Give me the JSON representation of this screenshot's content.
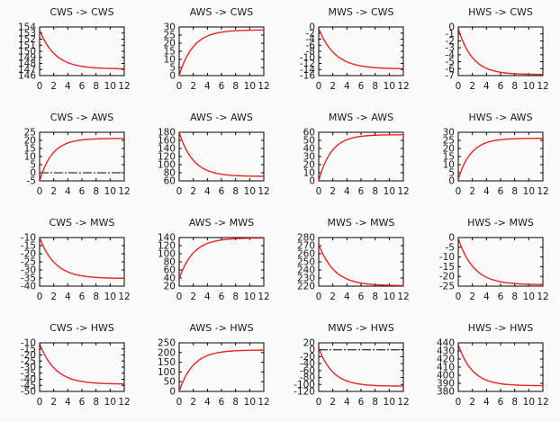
{
  "figure": {
    "background": "#fbfbfb",
    "curve_color": "#e62424",
    "axis_color": "#000000",
    "text_color": "#1a1a1a",
    "columns": 4,
    "rows": 4
  },
  "chart_data": [
    {
      "type": "line",
      "title": "CWS -> CWS",
      "xlabel": "",
      "ylabel": "",
      "xlim": [
        0,
        12
      ],
      "ylim": [
        146,
        154
      ],
      "xticks": [
        0,
        2,
        4,
        6,
        8,
        10,
        12
      ],
      "yticks": [
        146,
        147,
        148,
        149,
        150,
        151,
        152,
        153,
        154
      ],
      "grid": false,
      "legend": "none",
      "zeroaxis": false,
      "series": [
        {
          "name": "response",
          "shape": "exponential-decay",
          "start": 153.5,
          "end": 147.1,
          "tau": 2.2
        }
      ]
    },
    {
      "type": "line",
      "title": "AWS -> CWS",
      "xlabel": "",
      "ylabel": "",
      "xlim": [
        0,
        12
      ],
      "ylim": [
        0,
        30
      ],
      "xticks": [
        0,
        2,
        4,
        6,
        8,
        10,
        12
      ],
      "yticks": [
        0,
        5,
        10,
        15,
        20,
        25,
        30
      ],
      "grid": false,
      "legend": "none",
      "zeroaxis": false,
      "series": [
        {
          "name": "response",
          "shape": "exponential-rise",
          "start": 0,
          "end": 28.2,
          "tau": 2.0
        }
      ]
    },
    {
      "type": "line",
      "title": "MWS -> CWS",
      "xlabel": "",
      "ylabel": "",
      "xlim": [
        0,
        12
      ],
      "ylim": [
        -16,
        0
      ],
      "xticks": [
        0,
        2,
        4,
        6,
        8,
        10,
        12
      ],
      "yticks": [
        -16,
        -14,
        -12,
        -10,
        -8,
        -6,
        -4,
        -2,
        0
      ],
      "grid": false,
      "legend": "none",
      "zeroaxis": false,
      "series": [
        {
          "name": "response",
          "shape": "exponential-decay",
          "start": -0.5,
          "end": -13.8,
          "tau": 2.3
        }
      ]
    },
    {
      "type": "line",
      "title": "HWS -> CWS",
      "xlabel": "",
      "ylabel": "",
      "xlim": [
        0,
        12
      ],
      "ylim": [
        -7,
        0
      ],
      "xticks": [
        0,
        2,
        4,
        6,
        8,
        10,
        12
      ],
      "yticks": [
        -7,
        -6,
        -5,
        -4,
        -3,
        -2,
        -1,
        0
      ],
      "grid": false,
      "legend": "none",
      "zeroaxis": false,
      "series": [
        {
          "name": "response",
          "shape": "exponential-decay",
          "start": -0.2,
          "end": -6.85,
          "tau": 2.0
        }
      ]
    },
    {
      "type": "line",
      "title": "CWS -> AWS",
      "xlabel": "",
      "ylabel": "",
      "xlim": [
        0,
        12
      ],
      "ylim": [
        -5,
        25
      ],
      "xticks": [
        0,
        2,
        4,
        6,
        8,
        10,
        12
      ],
      "yticks": [
        -5,
        0,
        5,
        10,
        15,
        20,
        25
      ],
      "grid": false,
      "legend": "none",
      "zeroaxis": true,
      "series": [
        {
          "name": "response",
          "shape": "exponential-rise",
          "start": -5,
          "end": 21.2,
          "tau": 1.8
        }
      ]
    },
    {
      "type": "line",
      "title": "AWS -> AWS",
      "xlabel": "",
      "ylabel": "",
      "xlim": [
        0,
        12
      ],
      "ylim": [
        60,
        180
      ],
      "xticks": [
        0,
        2,
        4,
        6,
        8,
        10,
        12
      ],
      "yticks": [
        60,
        80,
        100,
        120,
        140,
        160,
        180
      ],
      "grid": false,
      "legend": "none",
      "zeroaxis": false,
      "series": [
        {
          "name": "response",
          "shape": "exponential-decay",
          "start": 180,
          "end": 71,
          "tau": 2.0
        }
      ]
    },
    {
      "type": "line",
      "title": "MWS -> AWS",
      "xlabel": "",
      "ylabel": "",
      "xlim": [
        0,
        12
      ],
      "ylim": [
        0,
        60
      ],
      "xticks": [
        0,
        2,
        4,
        6,
        8,
        10,
        12
      ],
      "yticks": [
        0,
        10,
        20,
        30,
        40,
        50,
        60
      ],
      "grid": false,
      "legend": "none",
      "zeroaxis": false,
      "series": [
        {
          "name": "response",
          "shape": "exponential-rise",
          "start": 0,
          "end": 57,
          "tau": 1.8
        }
      ]
    },
    {
      "type": "line",
      "title": "HWS -> AWS",
      "xlabel": "",
      "ylabel": "",
      "xlim": [
        0,
        12
      ],
      "ylim": [
        0,
        30
      ],
      "xticks": [
        0,
        2,
        4,
        6,
        8,
        10,
        12
      ],
      "yticks": [
        0,
        5,
        10,
        15,
        20,
        25,
        30
      ],
      "grid": false,
      "legend": "none",
      "zeroaxis": false,
      "series": [
        {
          "name": "response",
          "shape": "exponential-rise",
          "start": 1,
          "end": 26.3,
          "tau": 1.8
        }
      ]
    },
    {
      "type": "line",
      "title": "CWS -> MWS",
      "xlabel": "",
      "ylabel": "",
      "xlim": [
        0,
        12
      ],
      "ylim": [
        -40,
        -10
      ],
      "xticks": [
        0,
        2,
        4,
        6,
        8,
        10,
        12
      ],
      "yticks": [
        -40,
        -35,
        -30,
        -25,
        -20,
        -15,
        -10
      ],
      "grid": false,
      "legend": "none",
      "zeroaxis": false,
      "series": [
        {
          "name": "response",
          "shape": "exponential-decay",
          "start": -10,
          "end": -35.3,
          "tau": 2.2
        }
      ]
    },
    {
      "type": "line",
      "title": "AWS -> MWS",
      "xlabel": "",
      "ylabel": "",
      "xlim": [
        0,
        12
      ],
      "ylim": [
        20,
        140
      ],
      "xticks": [
        0,
        2,
        4,
        6,
        8,
        10,
        12
      ],
      "yticks": [
        20,
        40,
        60,
        80,
        100,
        120,
        140
      ],
      "grid": false,
      "legend": "none",
      "zeroaxis": false,
      "series": [
        {
          "name": "response",
          "shape": "exponential-rise",
          "start": 38,
          "end": 139,
          "tau": 2.0
        }
      ]
    },
    {
      "type": "line",
      "title": "MWS -> MWS",
      "xlabel": "",
      "ylabel": "",
      "xlim": [
        0,
        12
      ],
      "ylim": [
        220,
        280
      ],
      "xticks": [
        0,
        2,
        4,
        6,
        8,
        10,
        12
      ],
      "yticks": [
        220,
        230,
        240,
        250,
        260,
        270,
        280
      ],
      "grid": false,
      "legend": "none",
      "zeroaxis": false,
      "series": [
        {
          "name": "response",
          "shape": "exponential-decay",
          "start": 272,
          "end": 220.5,
          "tau": 2.2
        }
      ]
    },
    {
      "type": "line",
      "title": "HWS -> MWS",
      "xlabel": "",
      "ylabel": "",
      "xlim": [
        0,
        12
      ],
      "ylim": [
        -25,
        0
      ],
      "xticks": [
        0,
        2,
        4,
        6,
        8,
        10,
        12
      ],
      "yticks": [
        -25,
        -20,
        -15,
        -10,
        -5,
        0
      ],
      "grid": false,
      "legend": "none",
      "zeroaxis": false,
      "series": [
        {
          "name": "response",
          "shape": "exponential-decay",
          "start": -0.4,
          "end": -24.3,
          "tau": 2.2
        }
      ]
    },
    {
      "type": "line",
      "title": "CWS -> HWS",
      "xlabel": "",
      "ylabel": "",
      "xlim": [
        0,
        12
      ],
      "ylim": [
        -50,
        -10
      ],
      "xticks": [
        0,
        2,
        4,
        6,
        8,
        10,
        12
      ],
      "yticks": [
        -50,
        -45,
        -40,
        -35,
        -30,
        -25,
        -20,
        -15,
        -10
      ],
      "grid": false,
      "legend": "none",
      "zeroaxis": false,
      "series": [
        {
          "name": "response",
          "shape": "exponential-decay",
          "start": -10.5,
          "end": -44,
          "tau": 2.2
        }
      ]
    },
    {
      "type": "line",
      "title": "AWS -> HWS",
      "xlabel": "",
      "ylabel": "",
      "xlim": [
        0,
        12
      ],
      "ylim": [
        0,
        250
      ],
      "xticks": [
        0,
        2,
        4,
        6,
        8,
        10,
        12
      ],
      "yticks": [
        0,
        50,
        100,
        150,
        200,
        250
      ],
      "grid": false,
      "legend": "none",
      "zeroaxis": false,
      "series": [
        {
          "name": "response",
          "shape": "exponential-rise",
          "start": 0,
          "end": 213,
          "tau": 2.0
        }
      ]
    },
    {
      "type": "line",
      "title": "MWS -> HWS",
      "xlabel": "",
      "ylabel": "",
      "xlim": [
        0,
        12
      ],
      "ylim": [
        -120,
        20
      ],
      "xticks": [
        0,
        2,
        4,
        6,
        8,
        10,
        12
      ],
      "yticks": [
        -120,
        -100,
        -80,
        -60,
        -40,
        -20,
        0,
        20
      ],
      "grid": false,
      "legend": "none",
      "zeroaxis": true,
      "series": [
        {
          "name": "response",
          "shape": "exponential-decay",
          "start": 6,
          "end": -105,
          "tau": 2.0
        }
      ]
    },
    {
      "type": "line",
      "title": "HWS -> HWS",
      "xlabel": "",
      "ylabel": "",
      "xlim": [
        0,
        12
      ],
      "ylim": [
        380,
        440
      ],
      "xticks": [
        0,
        2,
        4,
        6,
        8,
        10,
        12
      ],
      "yticks": [
        380,
        390,
        400,
        410,
        420,
        430,
        440
      ],
      "grid": false,
      "legend": "none",
      "zeroaxis": false,
      "series": [
        {
          "name": "response",
          "shape": "exponential-decay",
          "start": 438,
          "end": 387,
          "tau": 2.0
        }
      ]
    }
  ]
}
